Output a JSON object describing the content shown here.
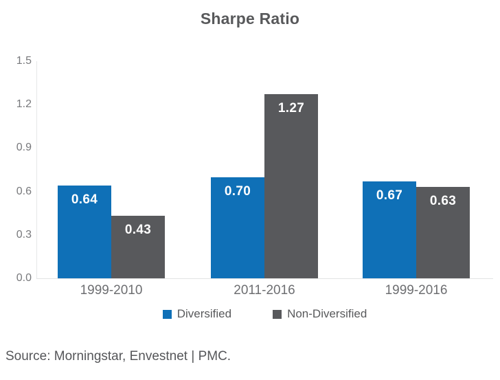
{
  "chart_data": {
    "type": "bar",
    "title": "Sharpe Ratio",
    "categories": [
      "1999-2010",
      "2011-2016",
      "1999-2016"
    ],
    "series": [
      {
        "name": "Diversified",
        "color": "#0f70b7",
        "values": [
          0.64,
          0.7,
          0.67
        ]
      },
      {
        "name": "Non-Diversified",
        "color": "#58595c",
        "values": [
          0.43,
          1.27,
          0.63
        ]
      }
    ],
    "ylim": [
      0.0,
      1.5
    ],
    "y_ticks": [
      "1.5",
      "1.2",
      "0.9",
      "0.6",
      "0.3",
      "0.0"
    ],
    "grid": false,
    "legend_position": "bottom",
    "value_label_color": "#ffffff"
  },
  "source": "Source: Morningstar, Envestnet | PMC."
}
